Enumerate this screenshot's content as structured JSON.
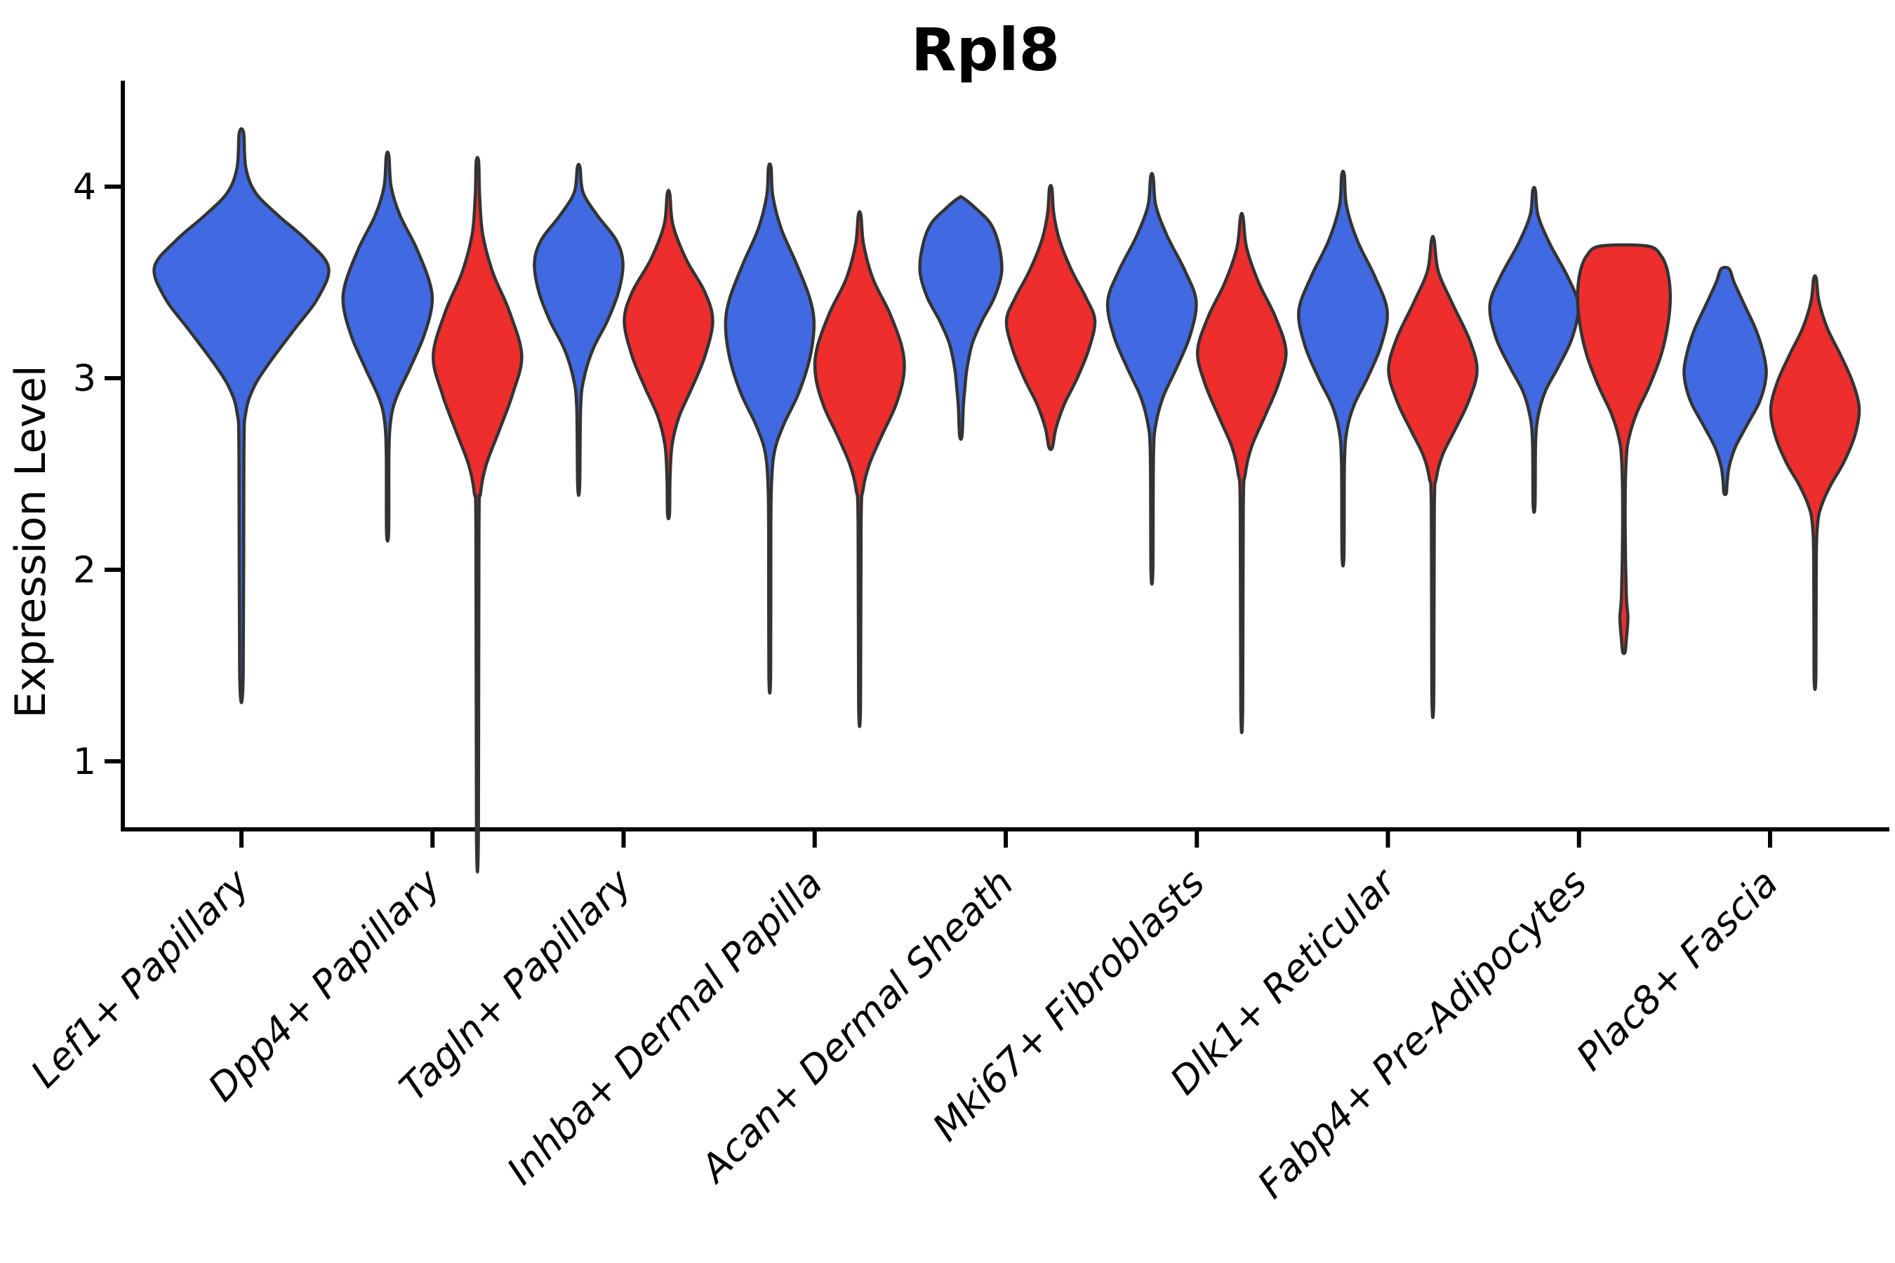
{
  "title": "Rpl8",
  "colors": {
    "background": "#ffffff",
    "blue_fill": "#4169E1",
    "red_fill": "#EE2D2D",
    "violin_outline": "#333333",
    "axis": "#000000",
    "text": "#000000"
  },
  "chart_data": {
    "type": "violin",
    "subtype": "split-violin-pairs",
    "title": "Rpl8",
    "xlabel": "",
    "ylabel": "Expression Level",
    "yticks": [
      1,
      2,
      3,
      4
    ],
    "ylim": [
      0.65,
      4.55
    ],
    "grid": false,
    "legend": null,
    "categories": [
      "Lef1+ Papillary",
      "Dpp4+ Papillary",
      "Tagln+ Papillary",
      "Inhba+ Dermal Papilla",
      "Acan+ Dermal Sheath",
      "Mki67+ Fibroblasts",
      "Dlk1+ Reticular",
      "Fabp4+ Pre-Adipocytes",
      "Plac8+ Fascia"
    ],
    "groups": [
      {
        "id": "blue",
        "color": "#4169E1"
      },
      {
        "id": "red",
        "color": "#EE2D2D"
      }
    ],
    "violins": [
      {
        "category": "Lef1+ Papillary",
        "group": "blue",
        "x_offset": 0,
        "half_width": 124,
        "peak": 3.58,
        "range": [
          1.45,
          4.28
        ],
        "profile": [
          [
            4.28,
            0.025
          ],
          [
            4.1,
            0.05
          ],
          [
            3.97,
            0.16
          ],
          [
            3.85,
            0.42
          ],
          [
            3.72,
            0.75
          ],
          [
            3.58,
            1
          ],
          [
            3.42,
            0.88
          ],
          [
            3.25,
            0.6
          ],
          [
            3.08,
            0.32
          ],
          [
            2.95,
            0.14
          ],
          [
            2.82,
            0.05
          ],
          [
            2.6,
            0.028
          ],
          [
            1.45,
            0.02
          ]
        ]
      },
      {
        "category": "Dpp4+ Papillary",
        "group": "blue",
        "x_offset": -64,
        "half_width": 63,
        "peak": 3.38,
        "range": [
          2.2,
          4.16
        ],
        "profile": [
          [
            4.16,
            0.03
          ],
          [
            4.0,
            0.08
          ],
          [
            3.85,
            0.28
          ],
          [
            3.68,
            0.65
          ],
          [
            3.5,
            0.95
          ],
          [
            3.38,
            1
          ],
          [
            3.22,
            0.82
          ],
          [
            3.05,
            0.5
          ],
          [
            2.9,
            0.2
          ],
          [
            2.78,
            0.07
          ],
          [
            2.6,
            0.03
          ],
          [
            2.2,
            0.024
          ]
        ]
      },
      {
        "category": "Dpp4+ Papillary",
        "group": "red",
        "x_offset": 64,
        "half_width": 63,
        "peak": 3.12,
        "range": [
          0.62,
          4.13
        ],
        "profile": [
          [
            4.13,
            0.028
          ],
          [
            3.95,
            0.05
          ],
          [
            3.75,
            0.12
          ],
          [
            3.55,
            0.35
          ],
          [
            3.35,
            0.72
          ],
          [
            3.12,
            1
          ],
          [
            2.92,
            0.8
          ],
          [
            2.72,
            0.48
          ],
          [
            2.55,
            0.2
          ],
          [
            2.4,
            0.07
          ],
          [
            2.2,
            0.034
          ],
          [
            0.62,
            0.022
          ]
        ]
      },
      {
        "category": "Tagln+ Papillary",
        "group": "blue",
        "x_offset": -64,
        "half_width": 63,
        "peak": 3.6,
        "range": [
          2.44,
          4.1
        ],
        "profile": [
          [
            4.1,
            0.03
          ],
          [
            3.97,
            0.1
          ],
          [
            3.85,
            0.42
          ],
          [
            3.72,
            0.85
          ],
          [
            3.6,
            1
          ],
          [
            3.45,
            0.9
          ],
          [
            3.3,
            0.65
          ],
          [
            3.15,
            0.32
          ],
          [
            3.0,
            0.12
          ],
          [
            2.85,
            0.045
          ],
          [
            2.44,
            0.022
          ]
        ]
      },
      {
        "category": "Tagln+ Papillary",
        "group": "red",
        "x_offset": 64,
        "half_width": 63,
        "peak": 3.3,
        "range": [
          2.29,
          3.96
        ],
        "profile": [
          [
            3.96,
            0.03
          ],
          [
            3.8,
            0.1
          ],
          [
            3.62,
            0.4
          ],
          [
            3.45,
            0.82
          ],
          [
            3.3,
            1
          ],
          [
            3.12,
            0.83
          ],
          [
            2.96,
            0.55
          ],
          [
            2.8,
            0.24
          ],
          [
            2.65,
            0.08
          ],
          [
            2.48,
            0.035
          ],
          [
            2.29,
            0.022
          ]
        ]
      },
      {
        "category": "Inhba+ Dermal Papilla",
        "group": "blue",
        "x_offset": -64,
        "half_width": 63,
        "peak": 3.28,
        "range": [
          1.45,
          4.1
        ],
        "profile": [
          [
            4.1,
            0.03
          ],
          [
            3.95,
            0.07
          ],
          [
            3.78,
            0.26
          ],
          [
            3.6,
            0.6
          ],
          [
            3.42,
            0.9
          ],
          [
            3.28,
            1
          ],
          [
            3.1,
            0.9
          ],
          [
            2.92,
            0.65
          ],
          [
            2.76,
            0.32
          ],
          [
            2.62,
            0.11
          ],
          [
            2.45,
            0.04
          ],
          [
            2.2,
            0.025
          ],
          [
            1.45,
            0.02
          ]
        ]
      },
      {
        "category": "Inhba+ Dermal Papilla",
        "group": "red",
        "x_offset": 64,
        "half_width": 63,
        "peak": 3.02,
        "range": [
          1.3,
          3.85
        ],
        "profile": [
          [
            3.85,
            0.03
          ],
          [
            3.7,
            0.09
          ],
          [
            3.52,
            0.3
          ],
          [
            3.34,
            0.68
          ],
          [
            3.16,
            0.96
          ],
          [
            3.02,
            1
          ],
          [
            2.86,
            0.82
          ],
          [
            2.7,
            0.5
          ],
          [
            2.55,
            0.22
          ],
          [
            2.42,
            0.08
          ],
          [
            2.25,
            0.034
          ],
          [
            1.3,
            0.022
          ]
        ]
      },
      {
        "category": "Acan+ Dermal Sheath",
        "group": "blue",
        "x_offset": -64,
        "half_width": 58,
        "peak": 3.55,
        "range": [
          2.7,
          3.94
        ],
        "profile": [
          [
            3.94,
            0.06
          ],
          [
            3.88,
            0.4
          ],
          [
            3.8,
            0.75
          ],
          [
            3.68,
            0.95
          ],
          [
            3.55,
            1
          ],
          [
            3.42,
            0.82
          ],
          [
            3.3,
            0.52
          ],
          [
            3.18,
            0.28
          ],
          [
            3.05,
            0.15
          ],
          [
            2.95,
            0.1
          ],
          [
            2.85,
            0.06
          ],
          [
            2.7,
            0.03
          ]
        ]
      },
      {
        "category": "Acan+ Dermal Sheath",
        "group": "red",
        "x_offset": 64,
        "half_width": 63,
        "peak": 3.3,
        "range": [
          2.64,
          3.99
        ],
        "profile": [
          [
            3.99,
            0.028
          ],
          [
            3.86,
            0.07
          ],
          [
            3.72,
            0.2
          ],
          [
            3.56,
            0.48
          ],
          [
            3.42,
            0.8
          ],
          [
            3.3,
            1
          ],
          [
            3.15,
            0.86
          ],
          [
            3.0,
            0.6
          ],
          [
            2.86,
            0.3
          ],
          [
            2.74,
            0.12
          ],
          [
            2.64,
            0.04
          ]
        ]
      },
      {
        "category": "Mki67+ Fibroblasts",
        "group": "blue",
        "x_offset": -64,
        "half_width": 63,
        "peak": 3.4,
        "range": [
          2.0,
          4.05
        ],
        "profile": [
          [
            4.05,
            0.03
          ],
          [
            3.9,
            0.09
          ],
          [
            3.74,
            0.35
          ],
          [
            3.56,
            0.75
          ],
          [
            3.4,
            1
          ],
          [
            3.22,
            0.86
          ],
          [
            3.05,
            0.55
          ],
          [
            2.9,
            0.25
          ],
          [
            2.76,
            0.09
          ],
          [
            2.6,
            0.035
          ],
          [
            2.0,
            0.022
          ]
        ]
      },
      {
        "category": "Mki67+ Fibroblasts",
        "group": "red",
        "x_offset": 64,
        "half_width": 63,
        "peak": 3.14,
        "range": [
          1.28,
          3.84
        ],
        "profile": [
          [
            3.84,
            0.03
          ],
          [
            3.68,
            0.11
          ],
          [
            3.5,
            0.38
          ],
          [
            3.32,
            0.76
          ],
          [
            3.14,
            1
          ],
          [
            2.97,
            0.83
          ],
          [
            2.8,
            0.52
          ],
          [
            2.64,
            0.22
          ],
          [
            2.5,
            0.08
          ],
          [
            2.32,
            0.034
          ],
          [
            1.28,
            0.022
          ]
        ]
      },
      {
        "category": "Dlk1+ Reticular",
        "group": "blue",
        "x_offset": -64,
        "half_width": 63,
        "peak": 3.35,
        "range": [
          2.08,
          4.06
        ],
        "profile": [
          [
            4.06,
            0.03
          ],
          [
            3.9,
            0.08
          ],
          [
            3.72,
            0.32
          ],
          [
            3.53,
            0.72
          ],
          [
            3.35,
            1
          ],
          [
            3.17,
            0.86
          ],
          [
            3.0,
            0.55
          ],
          [
            2.86,
            0.25
          ],
          [
            2.73,
            0.09
          ],
          [
            2.56,
            0.034
          ],
          [
            2.08,
            0.022
          ]
        ]
      },
      {
        "category": "Dlk1+ Reticular",
        "group": "red",
        "x_offset": 64,
        "half_width": 63,
        "peak": 3.04,
        "range": [
          1.35,
          3.72
        ],
        "profile": [
          [
            3.72,
            0.03
          ],
          [
            3.56,
            0.12
          ],
          [
            3.4,
            0.42
          ],
          [
            3.2,
            0.83
          ],
          [
            3.04,
            1
          ],
          [
            2.88,
            0.81
          ],
          [
            2.73,
            0.5
          ],
          [
            2.6,
            0.22
          ],
          [
            2.48,
            0.08
          ],
          [
            2.32,
            0.034
          ],
          [
            1.35,
            0.022
          ]
        ]
      },
      {
        "category": "Fabp4+ Pre-Adipocytes",
        "group": "blue",
        "x_offset": -64,
        "half_width": 63,
        "peak": 3.38,
        "range": [
          2.34,
          3.98
        ],
        "profile": [
          [
            3.98,
            0.03
          ],
          [
            3.85,
            0.09
          ],
          [
            3.7,
            0.36
          ],
          [
            3.53,
            0.76
          ],
          [
            3.38,
            1
          ],
          [
            3.21,
            0.86
          ],
          [
            3.06,
            0.55
          ],
          [
            2.93,
            0.25
          ],
          [
            2.8,
            0.09
          ],
          [
            2.66,
            0.034
          ],
          [
            2.34,
            0.022
          ]
        ]
      },
      {
        "category": "Fabp4+ Pre-Adipocytes",
        "group": "red",
        "x_offset": 64,
        "half_width": 66,
        "peak": 3.42,
        "range": [
          1.57,
          3.69
        ],
        "note": "flat blunt top; small detached-looking bulge on lower tail near 1.6-1.9",
        "profile": [
          [
            3.69,
            0.5
          ],
          [
            3.64,
            0.8
          ],
          [
            3.55,
            0.95
          ],
          [
            3.42,
            1
          ],
          [
            3.28,
            0.95
          ],
          [
            3.12,
            0.8
          ],
          [
            2.96,
            0.55
          ],
          [
            2.82,
            0.28
          ],
          [
            2.7,
            0.12
          ],
          [
            2.58,
            0.05
          ],
          [
            2.3,
            0.026
          ],
          [
            1.88,
            0.05
          ],
          [
            1.75,
            0.085
          ],
          [
            1.63,
            0.05
          ],
          [
            1.57,
            0.025
          ]
        ]
      },
      {
        "category": "Plac8+ Fascia",
        "group": "blue",
        "x_offset": -64,
        "half_width": 58,
        "peak": 3.0,
        "range": [
          2.4,
          3.57
        ],
        "profile": [
          [
            3.57,
            0.1
          ],
          [
            3.5,
            0.22
          ],
          [
            3.38,
            0.48
          ],
          [
            3.24,
            0.78
          ],
          [
            3.1,
            0.97
          ],
          [
            3.0,
            1
          ],
          [
            2.88,
            0.85
          ],
          [
            2.76,
            0.55
          ],
          [
            2.64,
            0.25
          ],
          [
            2.54,
            0.1
          ],
          [
            2.46,
            0.05
          ],
          [
            2.4,
            0.03
          ]
        ]
      },
      {
        "category": "Plac8+ Fascia",
        "group": "red",
        "x_offset": 64,
        "half_width": 63,
        "peak": 2.84,
        "range": [
          1.45,
          3.52
        ],
        "profile": [
          [
            3.52,
            0.03
          ],
          [
            3.4,
            0.09
          ],
          [
            3.26,
            0.28
          ],
          [
            3.12,
            0.58
          ],
          [
            2.98,
            0.85
          ],
          [
            2.84,
            1
          ],
          [
            2.7,
            0.9
          ],
          [
            2.56,
            0.65
          ],
          [
            2.44,
            0.35
          ],
          [
            2.33,
            0.14
          ],
          [
            2.24,
            0.06
          ],
          [
            2.05,
            0.028
          ],
          [
            1.45,
            0.02
          ]
        ]
      }
    ]
  }
}
